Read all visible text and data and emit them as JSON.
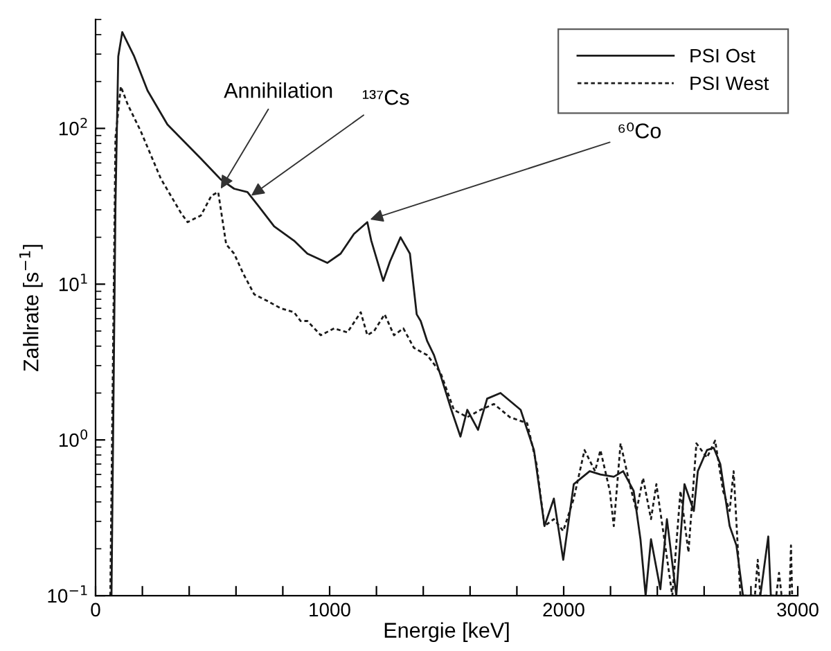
{
  "chart_data": {
    "type": "line",
    "xlabel": "Energie [keV]",
    "ylabel": "Zahlrate [s$^{−1}$]",
    "log": "y",
    "xlim": [
      0,
      3000
    ],
    "ylim": [
      0.1,
      500
    ],
    "xticks": [
      0,
      {
        "value": 200,
        "label": null
      },
      {
        "value": 400,
        "label": null
      },
      {
        "value": 600,
        "label": null
      },
      {
        "value": 800,
        "label": null
      },
      1000,
      {
        "value": 1200,
        "label": null
      },
      {
        "value": 1400,
        "label": null
      },
      {
        "value": 1600,
        "label": null
      },
      {
        "value": 1800,
        "label": null
      },
      2000,
      {
        "value": 2200,
        "label": null
      },
      {
        "value": 2400,
        "label": null
      },
      {
        "value": 2600,
        "label": null
      },
      {
        "value": 2800,
        "label": null
      },
      3000
    ],
    "yticks": [
      {
        "value": 0.1,
        "label": "10$^{−1}$"
      },
      {
        "value": 1,
        "label": "10$^{0}$"
      },
      {
        "value": 10,
        "label": "10$^{1}$"
      },
      {
        "value": 100,
        "label": "10$^{2}$"
      }
    ],
    "grid": false,
    "legend": "top right",
    "series": [
      {
        "name": "PSI Ost",
        "color": "#1a1a1a",
        "line_style": "solid",
        "x": [
          68,
          85,
          97,
          114,
          165,
          222,
          307,
          450,
          535,
          592,
          649,
          694,
          763,
          848,
          905,
          990,
          1047,
          1104,
          1161,
          1178,
          1229,
          1258,
          1303,
          1343,
          1372,
          1389,
          1417,
          1446,
          1474,
          1520,
          1559,
          1588,
          1634,
          1673,
          1730,
          1816,
          1873,
          1918,
          1958,
          1998,
          2043,
          2111,
          2157,
          2214,
          2254,
          2299,
          2328,
          2350,
          2373,
          2413,
          2441,
          2481,
          2516,
          2556,
          2573,
          2612,
          2641,
          2669,
          2709,
          2738,
          2766,
          2840,
          2874,
          2885,
          2925
        ],
        "values": [
          0.1,
          32,
          290,
          415,
          290,
          175,
          106,
          64,
          47,
          41,
          39,
          32,
          23.5,
          19,
          15.7,
          13.7,
          15.7,
          21,
          25,
          19,
          10.5,
          14,
          20,
          15.7,
          6.4,
          5.8,
          4.3,
          3.5,
          2.6,
          1.56,
          1.05,
          1.56,
          1.16,
          1.84,
          2.0,
          1.56,
          0.86,
          0.28,
          0.42,
          0.17,
          0.52,
          0.63,
          0.6,
          0.58,
          0.63,
          0.47,
          0.23,
          0.1,
          0.23,
          0.11,
          0.31,
          0.1,
          0.52,
          0.35,
          0.63,
          0.86,
          0.89,
          0.7,
          0.28,
          0.21,
          0.1,
          0.1,
          0.24,
          0.1,
          0.1
        ]
      },
      {
        "name": "PSI West",
        "color": "#1a1a1a",
        "line_style": "dashed",
        "x": [
          63,
          85,
          108,
          137,
          193,
          279,
          364,
          393,
          450,
          495,
          524,
          558,
          592,
          632,
          678,
          734,
          791,
          848,
          876,
          905,
          962,
          1019,
          1076,
          1133,
          1161,
          1190,
          1235,
          1275,
          1315,
          1360,
          1417,
          1474,
          1531,
          1588,
          1645,
          1702,
          1770,
          1844,
          1884,
          1918,
          1958,
          1998,
          2043,
          2089,
          2134,
          2157,
          2197,
          2214,
          2243,
          2282,
          2311,
          2339,
          2373,
          2396,
          2430,
          2464,
          2499,
          2533,
          2567,
          2612,
          2647,
          2681,
          2709,
          2726,
          2755,
          2817,
          2829,
          2840,
          2908,
          2920,
          2931,
          2965,
          2971,
          2976
        ],
        "values": [
          0.1,
          87,
          186,
          143,
          96,
          47.5,
          28.8,
          25,
          27.6,
          37,
          39,
          18,
          15.7,
          11.6,
          8.6,
          7.8,
          7,
          6.6,
          5.8,
          5.8,
          4.7,
          5.2,
          4.9,
          6.6,
          4.7,
          5,
          6.4,
          4.7,
          5.2,
          3.9,
          3.5,
          2.7,
          1.56,
          1.4,
          1.56,
          1.7,
          1.4,
          1.28,
          0.7,
          0.28,
          0.31,
          0.26,
          0.42,
          0.86,
          0.63,
          0.86,
          0.47,
          0.28,
          0.95,
          0.52,
          0.35,
          0.57,
          0.31,
          0.52,
          0.23,
          0.1,
          0.47,
          0.19,
          0.95,
          0.77,
          0.99,
          0.47,
          0.35,
          0.63,
          0.1,
          0.1,
          0.17,
          0.1,
          0.1,
          0.14,
          0.1,
          0.1,
          0.21,
          0.1
        ]
      }
    ],
    "annotations": [
      {
        "text": "Annihilation",
        "x": 535,
        "y": 41
      },
      {
        "text": "¹³⁷Cs",
        "x": 665,
        "y": 37
      },
      {
        "text": "⁶⁰Co",
        "x": 1173,
        "y": 26
      }
    ]
  }
}
